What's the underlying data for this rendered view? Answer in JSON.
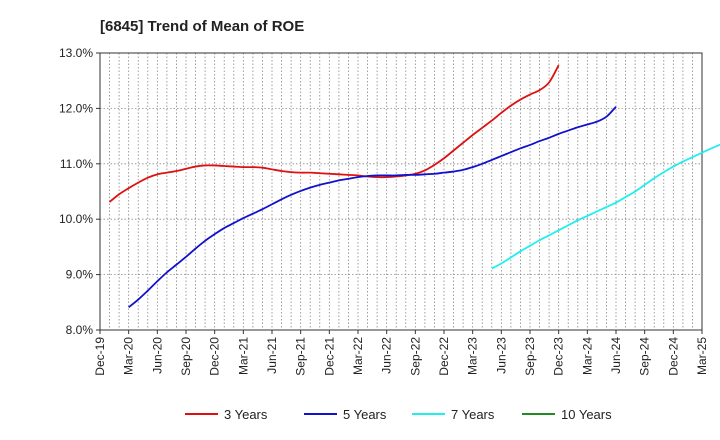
{
  "chart_data": {
    "type": "line",
    "title": "[6845]  Trend of Mean of ROE",
    "xlabel": "",
    "ylabel": "",
    "ylim": [
      8.0,
      13.0
    ],
    "y_ticks": [
      8.0,
      9.0,
      10.0,
      11.0,
      12.0,
      13.0
    ],
    "y_tick_labels": [
      "8.0%",
      "9.0%",
      "10.0%",
      "11.0%",
      "12.0%",
      "13.0%"
    ],
    "x_tick_labels": [
      "Dec-19",
      "Mar-20",
      "Jun-20",
      "Sep-20",
      "Dec-20",
      "Mar-21",
      "Jun-21",
      "Sep-21",
      "Dec-21",
      "Mar-22",
      "Jun-22",
      "Sep-22",
      "Dec-22",
      "Mar-23",
      "Jun-23",
      "Sep-23",
      "Dec-23",
      "Mar-24",
      "Jun-24",
      "Sep-24",
      "Dec-24",
      "Mar-25"
    ],
    "grid": true,
    "legend_position": "bottom",
    "series": [
      {
        "name": "3 Years",
        "color": "#dd1111",
        "values": [
          10.31,
          10.45,
          10.56,
          10.66,
          10.75,
          10.81,
          10.84,
          10.87,
          10.91,
          10.95,
          10.97,
          10.97,
          10.96,
          10.95,
          10.94,
          10.94,
          10.93,
          10.9,
          10.87,
          10.85,
          10.84,
          10.84,
          10.83,
          10.82,
          10.81,
          10.8,
          10.79,
          10.77,
          10.76,
          10.76,
          10.77,
          10.79,
          10.82,
          10.88,
          10.98,
          11.1,
          11.24,
          11.38,
          11.52,
          11.65,
          11.78,
          11.92,
          12.05,
          12.16,
          12.25,
          12.33,
          12.47,
          12.78
        ]
      },
      {
        "name": "5 Years",
        "color": "#1111cc",
        "values": [
          null,
          null,
          8.41,
          8.55,
          8.71,
          8.88,
          9.04,
          9.18,
          9.32,
          9.47,
          9.61,
          9.73,
          9.84,
          9.93,
          10.02,
          10.1,
          10.18,
          10.27,
          10.36,
          10.44,
          10.51,
          10.57,
          10.62,
          10.66,
          10.7,
          10.73,
          10.76,
          10.78,
          10.79,
          10.79,
          10.79,
          10.8,
          10.8,
          10.81,
          10.82,
          10.84,
          10.86,
          10.89,
          10.94,
          11.0,
          11.07,
          11.14,
          11.21,
          11.28,
          11.34,
          11.41,
          11.47,
          11.54,
          11.6,
          11.66,
          11.71,
          11.76,
          11.85,
          12.03
        ]
      },
      {
        "name": "7 Years",
        "color": "#22eeee",
        "values": [
          null,
          null,
          null,
          null,
          null,
          null,
          null,
          null,
          null,
          null,
          null,
          null,
          null,
          null,
          null,
          null,
          null,
          null,
          null,
          null,
          null,
          null,
          null,
          null,
          null,
          null,
          null,
          null,
          null,
          null,
          null,
          null,
          null,
          null,
          null,
          null,
          null,
          null,
          null,
          null,
          9.11,
          9.2,
          9.31,
          9.42,
          9.52,
          9.62,
          9.71,
          9.8,
          9.89,
          9.98,
          10.06,
          10.14,
          10.22,
          10.3,
          10.4,
          10.5,
          10.62,
          10.74,
          10.85,
          10.95,
          11.04,
          11.12,
          11.2,
          11.28,
          11.35,
          11.41,
          11.47,
          11.55,
          11.7
        ]
      },
      {
        "name": "10 Years",
        "color": "#228b22",
        "values": []
      }
    ]
  }
}
